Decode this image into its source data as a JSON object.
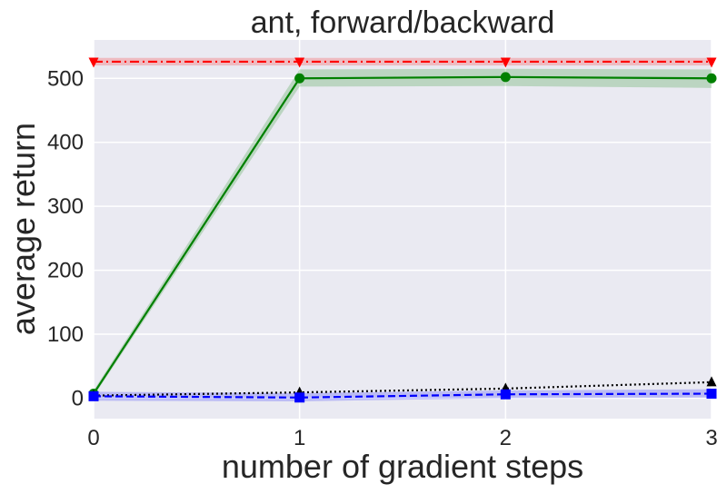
{
  "chart_data": {
    "type": "line",
    "title": "ant, forward/backward",
    "xlabel": "number of gradient steps",
    "ylabel": "average return",
    "xlim": [
      0,
      3
    ],
    "ylim": [
      -32,
      560
    ],
    "x_ticks": [
      0,
      1,
      2,
      3
    ],
    "y_ticks": [
      0,
      100,
      200,
      300,
      400,
      500
    ],
    "grid": true,
    "background": "#EAEAF2",
    "series": [
      {
        "color": "#FF0000",
        "line_style": "dash-dot",
        "marker": "triangle-down",
        "x": [
          0,
          1,
          2,
          3
        ],
        "y": [
          526,
          526,
          526,
          526
        ],
        "band_lower": [
          520,
          520,
          520,
          520
        ],
        "band_upper": [
          532,
          532,
          532,
          532
        ]
      },
      {
        "color": "#008000",
        "line_style": "solid",
        "marker": "circle",
        "x": [
          0,
          1,
          2,
          3
        ],
        "y": [
          7,
          500,
          502,
          500
        ],
        "band_lower": [
          3,
          487,
          488,
          485
        ],
        "band_upper": [
          12,
          514,
          515,
          514
        ]
      },
      {
        "color": "#000000",
        "line_style": "dotted",
        "marker": "triangle-up",
        "x": [
          0,
          1,
          2,
          3
        ],
        "y": [
          4,
          9,
          15,
          25
        ],
        "band_lower": [
          4,
          9,
          15,
          25
        ],
        "band_upper": [
          4,
          9,
          15,
          25
        ]
      },
      {
        "color": "#0000FF",
        "line_style": "dashed",
        "marker": "square",
        "x": [
          0,
          1,
          2,
          3
        ],
        "y": [
          3,
          1,
          6,
          7
        ],
        "band_lower": [
          -4,
          -5,
          0,
          1
        ],
        "band_upper": [
          10,
          8,
          12,
          14
        ]
      }
    ]
  }
}
